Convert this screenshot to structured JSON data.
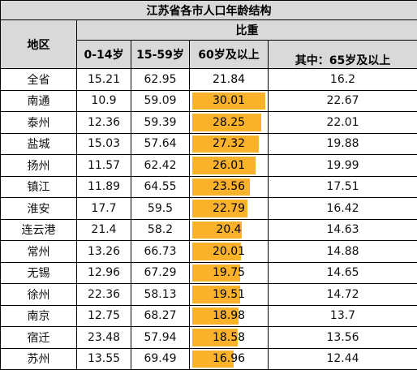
{
  "table": {
    "title": "江苏省各市人口年龄结构",
    "header_region": "地区",
    "header_ratio": "比重",
    "header_age_0_14": "0-14岁",
    "header_age_15_59": "15-59岁",
    "header_age_60_plus": "60岁及以上",
    "header_age_65_plus": "其中：65岁及以上"
  },
  "colors": {
    "bar": "#fbb22b",
    "header_bg": "#d9d9d9",
    "border": "#000000"
  },
  "chart_data": {
    "type": "table",
    "title": "江苏省各市人口年龄结构",
    "columns": [
      "地区",
      "0-14岁",
      "15-59岁",
      "60岁及以上",
      "其中：65岁及以上"
    ],
    "bar_column": "60岁及以上",
    "rows": [
      {
        "region": "全省",
        "age_0_14": "15.21",
        "age_15_59": "62.95",
        "age_60_plus": "21.84",
        "age_65_plus": "16.2",
        "bar": false
      },
      {
        "region": "南通",
        "age_0_14": "10.9",
        "age_15_59": "59.09",
        "age_60_plus": "30.01",
        "age_65_plus": "22.67",
        "bar": true
      },
      {
        "region": "泰州",
        "age_0_14": "12.36",
        "age_15_59": "59.39",
        "age_60_plus": "28.25",
        "age_65_plus": "22.01",
        "bar": true
      },
      {
        "region": "盐城",
        "age_0_14": "15.03",
        "age_15_59": "57.64",
        "age_60_plus": "27.32",
        "age_65_plus": "19.88",
        "bar": true
      },
      {
        "region": "扬州",
        "age_0_14": "11.57",
        "age_15_59": "62.42",
        "age_60_plus": "26.01",
        "age_65_plus": "19.99",
        "bar": true
      },
      {
        "region": "镇江",
        "age_0_14": "11.89",
        "age_15_59": "64.55",
        "age_60_plus": "23.56",
        "age_65_plus": "17.51",
        "bar": true
      },
      {
        "region": "淮安",
        "age_0_14": "17.7",
        "age_15_59": "59.5",
        "age_60_plus": "22.79",
        "age_65_plus": "16.42",
        "bar": true
      },
      {
        "region": "连云港",
        "age_0_14": "21.4",
        "age_15_59": "58.2",
        "age_60_plus": "20.4",
        "age_65_plus": "14.63",
        "bar": true
      },
      {
        "region": "常州",
        "age_0_14": "13.26",
        "age_15_59": "66.73",
        "age_60_plus": "20.01",
        "age_65_plus": "14.88",
        "bar": true
      },
      {
        "region": "无锡",
        "age_0_14": "12.96",
        "age_15_59": "67.29",
        "age_60_plus": "19.75",
        "age_65_plus": "14.65",
        "bar": true
      },
      {
        "region": "徐州",
        "age_0_14": "22.36",
        "age_15_59": "58.13",
        "age_60_plus": "19.51",
        "age_65_plus": "14.72",
        "bar": true
      },
      {
        "region": "南京",
        "age_0_14": "12.75",
        "age_15_59": "68.27",
        "age_60_plus": "18.98",
        "age_65_plus": "13.7",
        "bar": true
      },
      {
        "region": "宿迁",
        "age_0_14": "23.48",
        "age_15_59": "57.94",
        "age_60_plus": "18.58",
        "age_65_plus": "13.56",
        "bar": true
      },
      {
        "region": "苏州",
        "age_0_14": "13.55",
        "age_15_59": "69.49",
        "age_60_plus": "16.96",
        "age_65_plus": "12.44",
        "bar": true
      }
    ]
  }
}
